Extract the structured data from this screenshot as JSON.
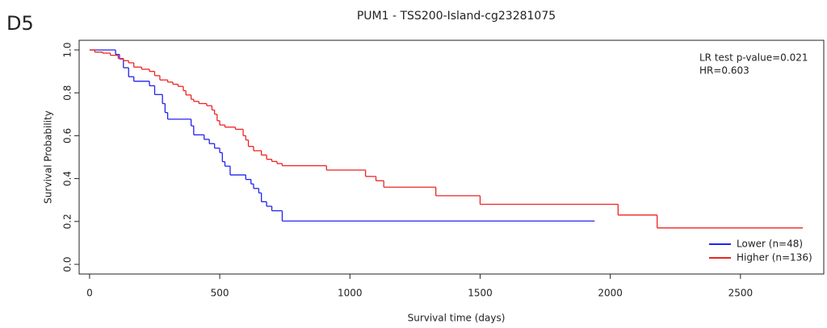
{
  "panel_label": "D5",
  "chart_data": {
    "type": "step",
    "title": "PUM1 - TSS200-Island-cg23281075",
    "x_label": "Survival time (days)",
    "y_label": "Survival Probability",
    "annotations": [
      "LR test p-value=0.021",
      "HR=0.603"
    ],
    "xlim": [
      -40,
      2820
    ],
    "ylim": [
      -0.045,
      1.045
    ],
    "xticks": [
      0,
      500,
      1000,
      1500,
      2000,
      2500
    ],
    "yticks": [
      {
        "value": 0,
        "label": "0.0"
      },
      0.2,
      0.4,
      0.6,
      0.8,
      {
        "value": 1,
        "label": "1.0"
      }
    ],
    "legend": "bottom-right",
    "series": [
      {
        "name": "Lower (n=48)",
        "color": "#2222ee",
        "x": [
          0,
          100,
          115,
          130,
          150,
          170,
          230,
          250,
          280,
          290,
          300,
          390,
          400,
          440,
          460,
          480,
          500,
          510,
          520,
          540,
          600,
          620,
          630,
          650,
          660,
          680,
          700,
          740,
          1940
        ],
        "values": [
          1.0,
          0.979,
          0.958,
          0.917,
          0.875,
          0.854,
          0.833,
          0.792,
          0.75,
          0.708,
          0.677,
          0.646,
          0.604,
          0.583,
          0.563,
          0.542,
          0.521,
          0.479,
          0.458,
          0.417,
          0.396,
          0.375,
          0.354,
          0.333,
          0.292,
          0.271,
          0.25,
          0.202,
          0.202
        ]
      },
      {
        "name": "Higher (n=136)",
        "color": "#ee2222",
        "x": [
          0,
          20,
          50,
          80,
          110,
          130,
          150,
          170,
          200,
          230,
          250,
          270,
          300,
          320,
          340,
          360,
          370,
          390,
          400,
          420,
          450,
          470,
          480,
          490,
          500,
          520,
          560,
          590,
          600,
          610,
          630,
          660,
          680,
          700,
          720,
          740,
          910,
          1060,
          1100,
          1130,
          1330,
          1500,
          2030,
          2180,
          2740
        ],
        "values": [
          1.0,
          0.99,
          0.985,
          0.975,
          0.96,
          0.95,
          0.94,
          0.92,
          0.91,
          0.9,
          0.88,
          0.86,
          0.85,
          0.84,
          0.83,
          0.81,
          0.79,
          0.77,
          0.76,
          0.75,
          0.74,
          0.72,
          0.7,
          0.67,
          0.65,
          0.64,
          0.63,
          0.6,
          0.58,
          0.55,
          0.53,
          0.51,
          0.49,
          0.48,
          0.47,
          0.46,
          0.44,
          0.41,
          0.39,
          0.36,
          0.32,
          0.28,
          0.23,
          0.17,
          0.17
        ]
      }
    ]
  }
}
